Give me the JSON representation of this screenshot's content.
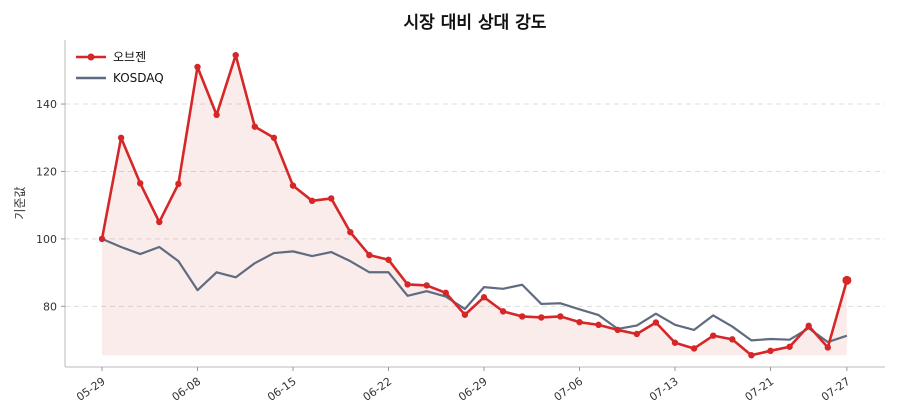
{
  "chart_data": {
    "type": "line",
    "title": "시장 대비 상대 강도",
    "xlabel": "",
    "ylabel": "기준값",
    "ylim": [
      62,
      159
    ],
    "yticks": [
      80,
      100,
      120,
      140
    ],
    "x_tick_labels": [
      "05-29",
      "06-08",
      "06-15",
      "06-22",
      "06-29",
      "07-06",
      "07-13",
      "07-21",
      "07-27"
    ],
    "x_tick_positions": [
      0,
      5,
      10,
      15,
      20,
      25,
      30,
      35,
      39
    ],
    "legend_position": "top-left",
    "grid": "horizontal-dashed",
    "series": [
      {
        "name": "오브젠",
        "color": "#d62728",
        "marker": "circle",
        "fill_below": true,
        "fill_baseline": 65.5,
        "values": [
          100,
          130,
          116.5,
          105,
          116.3,
          151,
          136.8,
          154.5,
          133.3,
          130,
          115.8,
          111.3,
          112,
          102,
          95.2,
          93.8,
          86.5,
          86.2,
          84,
          77.5,
          82.7,
          78.5,
          77,
          76.7,
          77,
          75.3,
          74.5,
          73,
          71.8,
          75.2,
          69.2,
          67.5,
          71.3,
          70.2,
          65.5,
          66.8,
          68,
          74.2,
          67.8,
          87.7
        ]
      },
      {
        "name": "KOSDAQ",
        "color": "#5f6b80",
        "marker": "none",
        "fill_below": false,
        "values": [
          100,
          97.6,
          95.5,
          97.6,
          93.4,
          84.8,
          90.1,
          88.6,
          92.8,
          95.8,
          96.3,
          94.9,
          96.1,
          93.4,
          90.1,
          90.1,
          83.1,
          84.5,
          82.9,
          79.2,
          85.7,
          85.2,
          86.4,
          80.7,
          80.9,
          79.1,
          77.4,
          73.3,
          74.3,
          77.8,
          74.5,
          73,
          77.3,
          74,
          69.9,
          70.3,
          70.1,
          73.5,
          69.4,
          71.3
        ]
      }
    ]
  }
}
